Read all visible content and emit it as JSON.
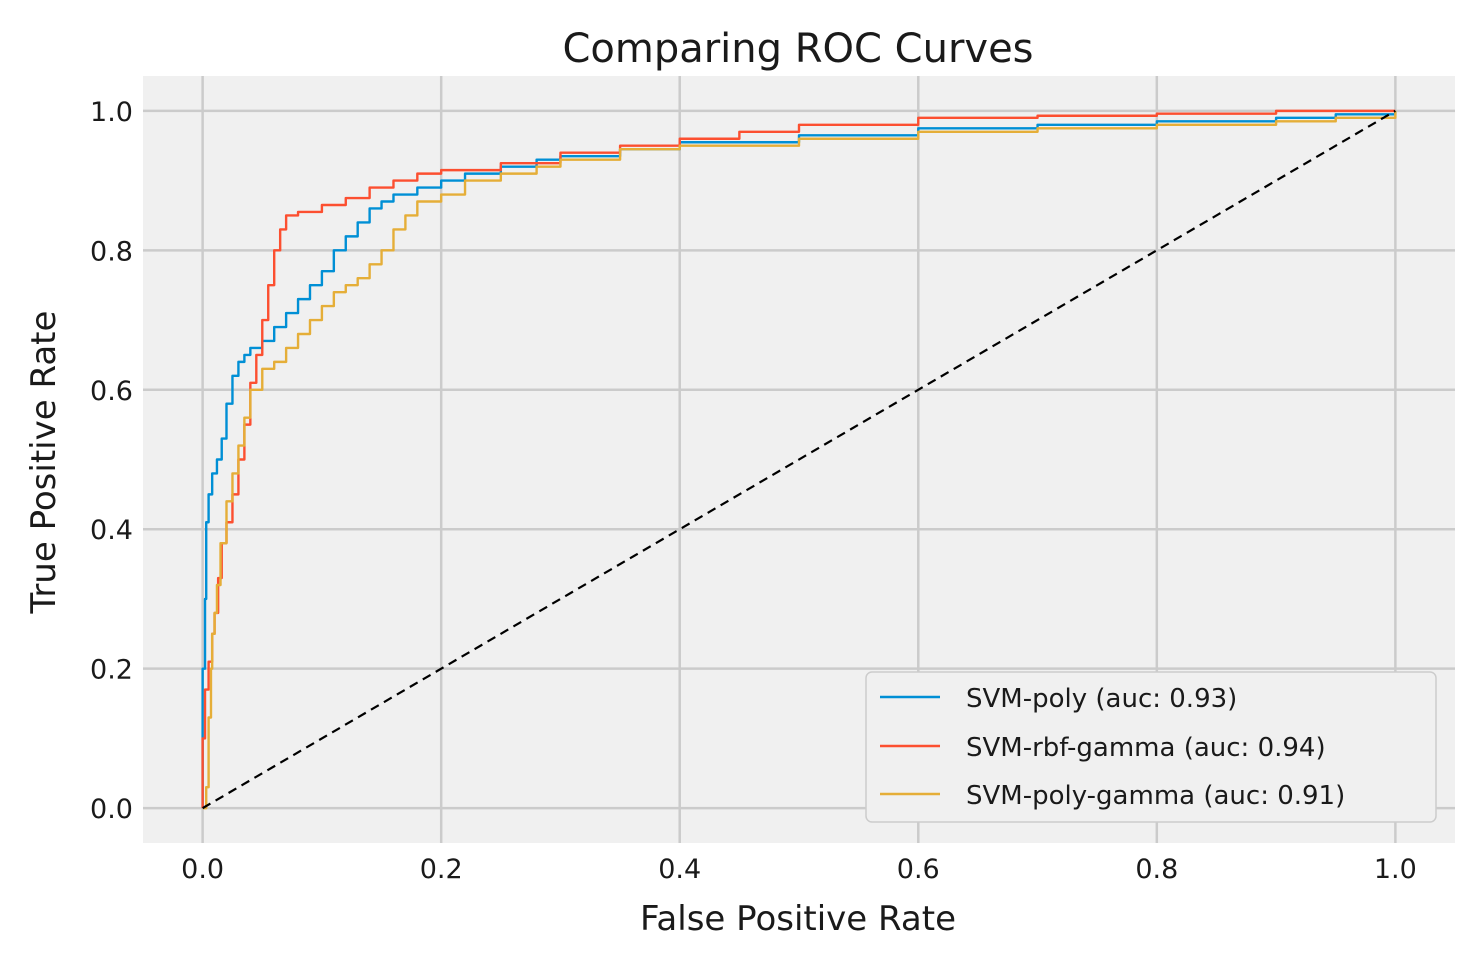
{
  "chart_data": {
    "type": "line",
    "title": "Comparing ROC Curves",
    "xlabel": "False Positive Rate",
    "ylabel": "True Positive Rate",
    "xlim": [
      -0.05,
      1.05
    ],
    "ylim": [
      -0.05,
      1.05
    ],
    "xticks": [
      0.0,
      0.2,
      0.4,
      0.6,
      0.8,
      1.0
    ],
    "xtick_labels": [
      "0.0",
      "0.2",
      "0.4",
      "0.6",
      "0.8",
      "1.0"
    ],
    "yticks": [
      0.0,
      0.2,
      0.4,
      0.6,
      0.8,
      1.0
    ],
    "ytick_labels": [
      "0.0",
      "0.2",
      "0.4",
      "0.6",
      "0.8",
      "1.0"
    ],
    "grid": true,
    "legend_position": "lower right",
    "series": [
      {
        "name": "SVM-poly (auc: 0.93)",
        "color": "#008fd5",
        "x": [
          0.0,
          0.0,
          0.002,
          0.003,
          0.005,
          0.008,
          0.012,
          0.016,
          0.02,
          0.025,
          0.03,
          0.035,
          0.04,
          0.05,
          0.06,
          0.07,
          0.08,
          0.09,
          0.1,
          0.11,
          0.12,
          0.13,
          0.14,
          0.15,
          0.16,
          0.18,
          0.2,
          0.22,
          0.25,
          0.28,
          0.3,
          0.35,
          0.4,
          0.5,
          0.6,
          0.7,
          0.8,
          0.9,
          0.95,
          1.0
        ],
        "y": [
          0.0,
          0.2,
          0.3,
          0.41,
          0.45,
          0.48,
          0.5,
          0.53,
          0.58,
          0.62,
          0.64,
          0.65,
          0.66,
          0.67,
          0.69,
          0.71,
          0.73,
          0.75,
          0.77,
          0.8,
          0.82,
          0.84,
          0.86,
          0.87,
          0.88,
          0.89,
          0.9,
          0.91,
          0.92,
          0.93,
          0.935,
          0.945,
          0.955,
          0.965,
          0.975,
          0.98,
          0.985,
          0.99,
          0.995,
          1.0
        ]
      },
      {
        "name": "SVM-rbf-gamma (auc: 0.94)",
        "color": "#fc4f30",
        "x": [
          0.0,
          0.0,
          0.002,
          0.005,
          0.008,
          0.01,
          0.013,
          0.016,
          0.02,
          0.025,
          0.03,
          0.035,
          0.04,
          0.045,
          0.05,
          0.055,
          0.06,
          0.065,
          0.07,
          0.08,
          0.1,
          0.12,
          0.14,
          0.16,
          0.18,
          0.2,
          0.25,
          0.3,
          0.35,
          0.4,
          0.45,
          0.5,
          0.6,
          0.7,
          0.8,
          0.9,
          1.0
        ],
        "y": [
          0.0,
          0.1,
          0.17,
          0.21,
          0.25,
          0.28,
          0.33,
          0.38,
          0.41,
          0.45,
          0.5,
          0.55,
          0.61,
          0.65,
          0.7,
          0.75,
          0.8,
          0.83,
          0.85,
          0.855,
          0.865,
          0.875,
          0.89,
          0.9,
          0.91,
          0.915,
          0.925,
          0.94,
          0.95,
          0.96,
          0.97,
          0.98,
          0.99,
          0.993,
          0.996,
          1.0,
          1.0
        ]
      },
      {
        "name": "SVM-poly-gamma (auc: 0.91)",
        "color": "#e5ae38",
        "x": [
          0.0,
          0.003,
          0.005,
          0.007,
          0.008,
          0.01,
          0.012,
          0.015,
          0.02,
          0.025,
          0.03,
          0.035,
          0.04,
          0.05,
          0.06,
          0.07,
          0.08,
          0.09,
          0.1,
          0.11,
          0.12,
          0.13,
          0.14,
          0.15,
          0.16,
          0.17,
          0.18,
          0.2,
          0.22,
          0.25,
          0.28,
          0.3,
          0.35,
          0.4,
          0.5,
          0.6,
          0.7,
          0.8,
          0.9,
          0.95,
          1.0
        ],
        "y": [
          0.0,
          0.03,
          0.13,
          0.2,
          0.25,
          0.28,
          0.32,
          0.38,
          0.44,
          0.48,
          0.52,
          0.56,
          0.6,
          0.63,
          0.64,
          0.66,
          0.68,
          0.7,
          0.72,
          0.74,
          0.75,
          0.76,
          0.78,
          0.8,
          0.83,
          0.85,
          0.87,
          0.88,
          0.9,
          0.91,
          0.92,
          0.93,
          0.945,
          0.95,
          0.96,
          0.97,
          0.975,
          0.98,
          0.985,
          0.99,
          1.0
        ]
      }
    ],
    "reference_line": {
      "x": [
        0.0,
        1.0
      ],
      "y": [
        0.0,
        1.0
      ],
      "color": "#000000",
      "style": "dashed"
    }
  },
  "colors": {
    "plot_background": "#f0f0f0",
    "grid": "#cbcbcb",
    "legend_background": "#f0f0f0",
    "legend_border": "#cccccc"
  }
}
